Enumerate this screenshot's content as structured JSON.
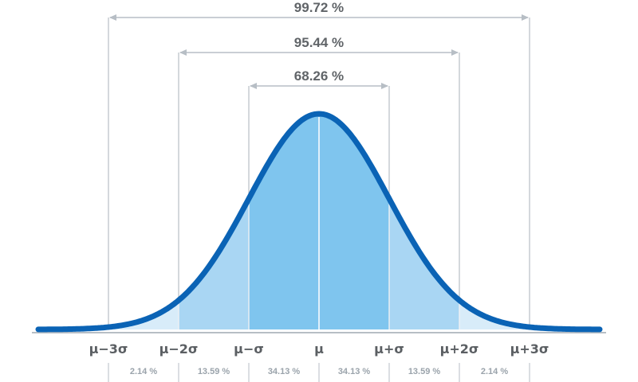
{
  "colors": {
    "curve": "#0a63b5",
    "fill_outer": "#d8ecf9",
    "fill_middle": "#a9d6f3",
    "fill_inner": "#7fc5ee",
    "guide_line": "#b7bec5",
    "text_dark": "#5b5f63",
    "text_light": "#9aa3ab"
  },
  "ranges": [
    {
      "label": "99.72 %",
      "from": -3,
      "to": 3
    },
    {
      "label": "95.44 %",
      "from": -2,
      "to": 2
    },
    {
      "label": "68.26 %",
      "from": -1,
      "to": 1
    }
  ],
  "sigma_labels": [
    {
      "text": "μ−3σ",
      "at": -3
    },
    {
      "text": "μ−2σ",
      "at": -2
    },
    {
      "text": "μ−σ",
      "at": -1
    },
    {
      "text": "μ",
      "at": 0
    },
    {
      "text": "μ+σ",
      "at": 1
    },
    {
      "text": "μ+2σ",
      "at": 2
    },
    {
      "text": "μ+3σ",
      "at": 3
    }
  ],
  "segments": [
    {
      "label": "2.14 %",
      "from": -3,
      "to": -2
    },
    {
      "label": "13.59 %",
      "from": -2,
      "to": -1
    },
    {
      "label": "34.13 %",
      "from": -1,
      "to": 0
    },
    {
      "label": "34.13 %",
      "from": 0,
      "to": 1
    },
    {
      "label": "13.59 %",
      "from": 1,
      "to": 2
    },
    {
      "label": "2.14 %",
      "from": 2,
      "to": 3
    }
  ]
}
